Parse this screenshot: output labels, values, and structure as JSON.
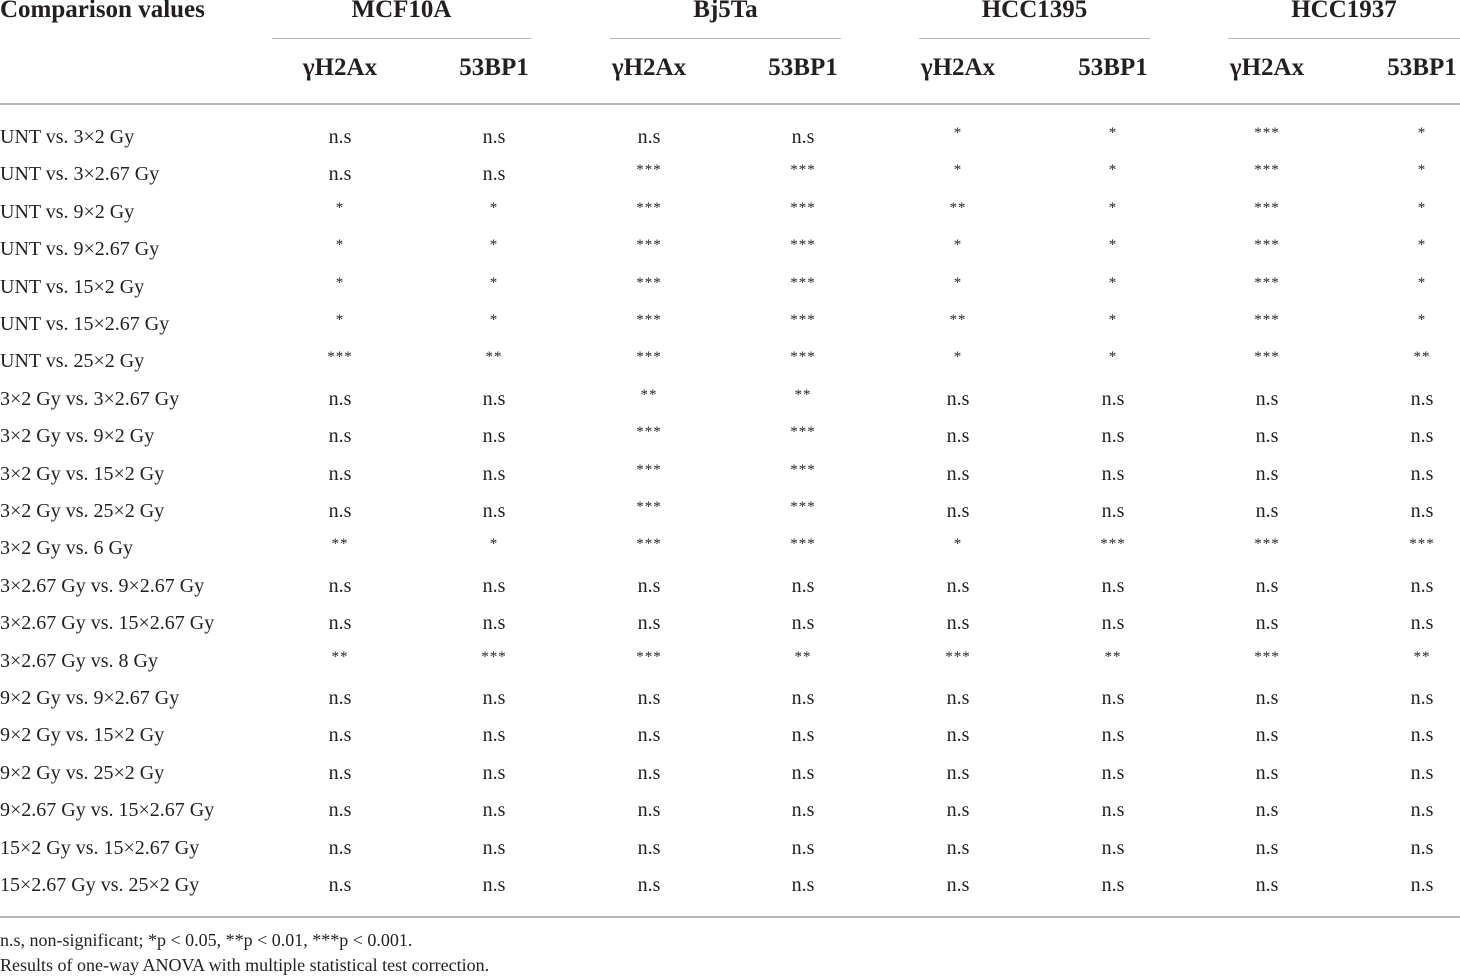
{
  "table": {
    "first_header": "Comparison values",
    "groups": [
      {
        "name": "MCF10A",
        "subs": [
          "γH2Ax",
          "53BP1"
        ]
      },
      {
        "name": "Bj5Ta",
        "subs": [
          "γH2Ax",
          "53BP1"
        ]
      },
      {
        "name": "HCC1395",
        "subs": [
          "γH2Ax",
          "53BP1"
        ]
      },
      {
        "name": "HCC1937",
        "subs": [
          "γH2Ax",
          "53BP1"
        ]
      }
    ],
    "rows": [
      {
        "label": "UNT vs. 3×2 Gy",
        "values": [
          "n.s",
          "n.s",
          "n.s",
          "n.s",
          "*",
          "*",
          "***",
          "*"
        ]
      },
      {
        "label": "UNT vs. 3×2.67 Gy",
        "values": [
          "n.s",
          "n.s",
          "***",
          "***",
          "*",
          "*",
          "***",
          "*"
        ]
      },
      {
        "label": "UNT vs. 9×2 Gy",
        "values": [
          "*",
          "*",
          "***",
          "***",
          "**",
          "*",
          "***",
          "*"
        ]
      },
      {
        "label": "UNT vs. 9×2.67 Gy",
        "values": [
          "*",
          "*",
          "***",
          "***",
          "*",
          "*",
          "***",
          "*"
        ]
      },
      {
        "label": "UNT vs. 15×2 Gy",
        "values": [
          "*",
          "*",
          "***",
          "***",
          "*",
          "*",
          "***",
          "*"
        ]
      },
      {
        "label": "UNT vs. 15×2.67 Gy",
        "values": [
          "*",
          "*",
          "***",
          "***",
          "**",
          "*",
          "***",
          "*"
        ]
      },
      {
        "label": "UNT vs. 25×2 Gy",
        "values": [
          "***",
          "**",
          "***",
          "***",
          "*",
          "*",
          "***",
          "**"
        ]
      },
      {
        "label": "3×2 Gy vs. 3×2.67 Gy",
        "values": [
          "n.s",
          "n.s",
          "**",
          "**",
          "n.s",
          "n.s",
          "n.s",
          "n.s"
        ]
      },
      {
        "label": "3×2 Gy vs. 9×2 Gy",
        "values": [
          "n.s",
          "n.s",
          "***",
          "***",
          "n.s",
          "n.s",
          "n.s",
          "n.s"
        ]
      },
      {
        "label": "3×2 Gy vs. 15×2 Gy",
        "values": [
          "n.s",
          "n.s",
          "***",
          "***",
          "n.s",
          "n.s",
          "n.s",
          "n.s"
        ]
      },
      {
        "label": "3×2 Gy vs. 25×2 Gy",
        "values": [
          "n.s",
          "n.s",
          "***",
          "***",
          "n.s",
          "n.s",
          "n.s",
          "n.s"
        ]
      },
      {
        "label": "3×2 Gy vs. 6 Gy",
        "values": [
          "**",
          "*",
          "***",
          "***",
          "*",
          "***",
          "***",
          "***"
        ]
      },
      {
        "label": "3×2.67 Gy vs. 9×2.67 Gy",
        "values": [
          "n.s",
          "n.s",
          "n.s",
          "n.s",
          "n.s",
          "n.s",
          "n.s",
          "n.s"
        ]
      },
      {
        "label": "3×2.67 Gy vs. 15×2.67 Gy",
        "values": [
          "n.s",
          "n.s",
          "n.s",
          "n.s",
          "n.s",
          "n.s",
          "n.s",
          "n.s"
        ]
      },
      {
        "label": "3×2.67 Gy vs. 8 Gy",
        "values": [
          "**",
          "***",
          "***",
          "**",
          "***",
          "**",
          "***",
          "**"
        ]
      },
      {
        "label": "9×2 Gy vs. 9×2.67 Gy",
        "values": [
          "n.s",
          "n.s",
          "n.s",
          "n.s",
          "n.s",
          "n.s",
          "n.s",
          "n.s"
        ]
      },
      {
        "label": "9×2 Gy vs. 15×2 Gy",
        "values": [
          "n.s",
          "n.s",
          "n.s",
          "n.s",
          "n.s",
          "n.s",
          "n.s",
          "n.s"
        ]
      },
      {
        "label": "9×2 Gy vs. 25×2 Gy",
        "values": [
          "n.s",
          "n.s",
          "n.s",
          "n.s",
          "n.s",
          "n.s",
          "n.s",
          "n.s"
        ]
      },
      {
        "label": "9×2.67 Gy vs. 15×2.67 Gy",
        "values": [
          "n.s",
          "n.s",
          "n.s",
          "n.s",
          "n.s",
          "n.s",
          "n.s",
          "n.s"
        ]
      },
      {
        "label": "15×2 Gy vs. 15×2.67 Gy",
        "values": [
          "n.s",
          "n.s",
          "n.s",
          "n.s",
          "n.s",
          "n.s",
          "n.s",
          "n.s"
        ]
      },
      {
        "label": "15×2.67 Gy vs. 25×2 Gy",
        "values": [
          "n.s",
          "n.s",
          "n.s",
          "n.s",
          "n.s",
          "n.s",
          "n.s",
          "n.s"
        ]
      }
    ]
  },
  "footnotes": {
    "line1": "n.s, non-significant; *p < 0.05, **p < 0.01, ***p < 0.001.",
    "line2": "Results of one-way ANOVA with multiple statistical test correction."
  },
  "colors": {
    "text": "#231f20",
    "rule": "#b7b7b7"
  }
}
